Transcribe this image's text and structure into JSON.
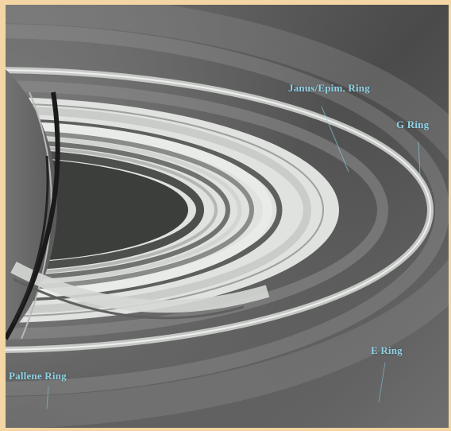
{
  "labels": {
    "janus_epimetheus": "Janus/Epim. Ring",
    "g_ring": "G Ring",
    "e_ring": "E Ring",
    "pallene": "Pallene Ring"
  },
  "colors": {
    "border": "#f3d6a3",
    "label_text": "#8fd2e6",
    "space_dark": "#3f3f3f",
    "space_light": "#8a8a8a",
    "main_rings": "#d9dcd9"
  }
}
